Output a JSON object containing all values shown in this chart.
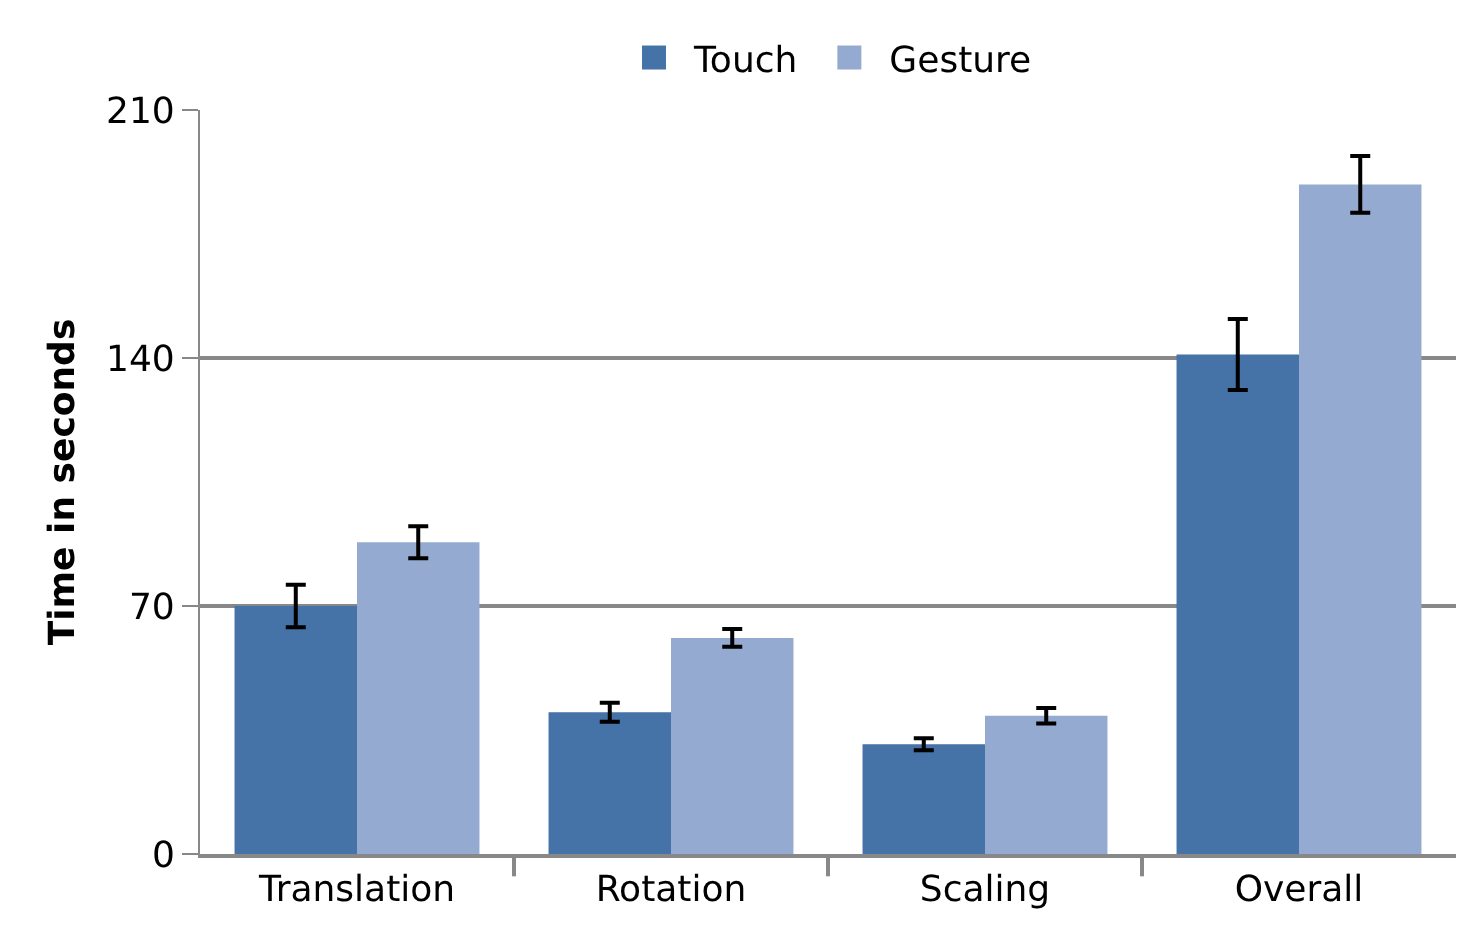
{
  "chart_data": {
    "type": "bar",
    "ylabel": "Time in seconds",
    "categories": [
      "Translation",
      "Rotation",
      "Scaling",
      "Overall"
    ],
    "series": [
      {
        "name": "Touch",
        "color": "#4572a7",
        "values": [
          70,
          40,
          31,
          141
        ],
        "errors": [
          6,
          2.7,
          1.7,
          10
        ]
      },
      {
        "name": "Gesture",
        "color": "#95aad0",
        "values": [
          88,
          61,
          39,
          189
        ],
        "errors": [
          4.5,
          2.5,
          2.2,
          8
        ]
      }
    ],
    "ylim": [
      0,
      210
    ],
    "yticks": [
      0,
      70,
      140,
      210
    ],
    "grid": "y",
    "legend": "top"
  }
}
